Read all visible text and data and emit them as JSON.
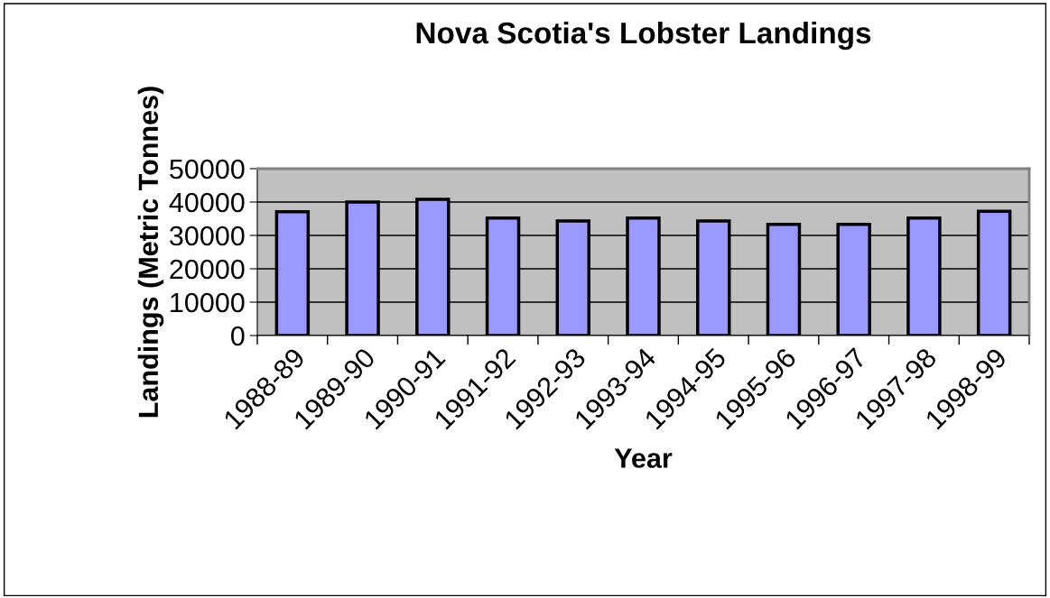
{
  "chart_data": {
    "type": "bar",
    "title": "Nova Scotia's Lobster Landings",
    "xlabel": "Year",
    "ylabel": "Landings (Metric Tonnes)",
    "categories": [
      "1988-89",
      "1989-90",
      "1990-91",
      "1991-92",
      "1992-93",
      "1993-94",
      "1994-95",
      "1995-96",
      "1996-97",
      "1997-98",
      "1998-99"
    ],
    "values": [
      37100,
      40000,
      40800,
      35200,
      34300,
      35200,
      34300,
      33300,
      33300,
      35200,
      37200
    ],
    "color": "#9999ff",
    "ylim": [
      0,
      50000
    ],
    "yticks": [
      0,
      10000,
      20000,
      30000,
      40000,
      50000
    ],
    "grid": "y",
    "legend": false
  }
}
